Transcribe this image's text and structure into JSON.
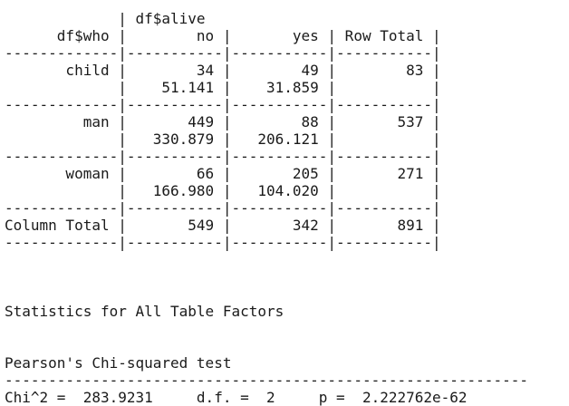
{
  "crosstable": {
    "lines": [
      "             | df$alive",
      "      df$who |        no |       yes | Row Total |",
      "-------------|-----------|-----------|-----------|",
      "       child |        34 |        49 |        83 |",
      "             |    51.141 |    31.859 |           |",
      "-------------|-----------|-----------|-----------|",
      "         man |       449 |        88 |       537 |",
      "             |   330.879 |   206.121 |           |",
      "-------------|-----------|-----------|-----------|",
      "       woman |        66 |       205 |       271 |",
      "             |   166.980 |   104.020 |           |",
      "-------------|-----------|-----------|-----------|",
      "Column Total |       549 |       342 |       891 |",
      "-------------|-----------|-----------|-----------|"
    ]
  },
  "statistics": {
    "lines": [
      "",
      "",
      "",
      "Statistics for All Table Factors",
      "",
      "",
      "Pearson's Chi-squared test",
      "------------------------------------------------------------",
      "Chi^2 =  283.9231     d.f. =  2     p =  2.222762e-62"
    ]
  }
}
